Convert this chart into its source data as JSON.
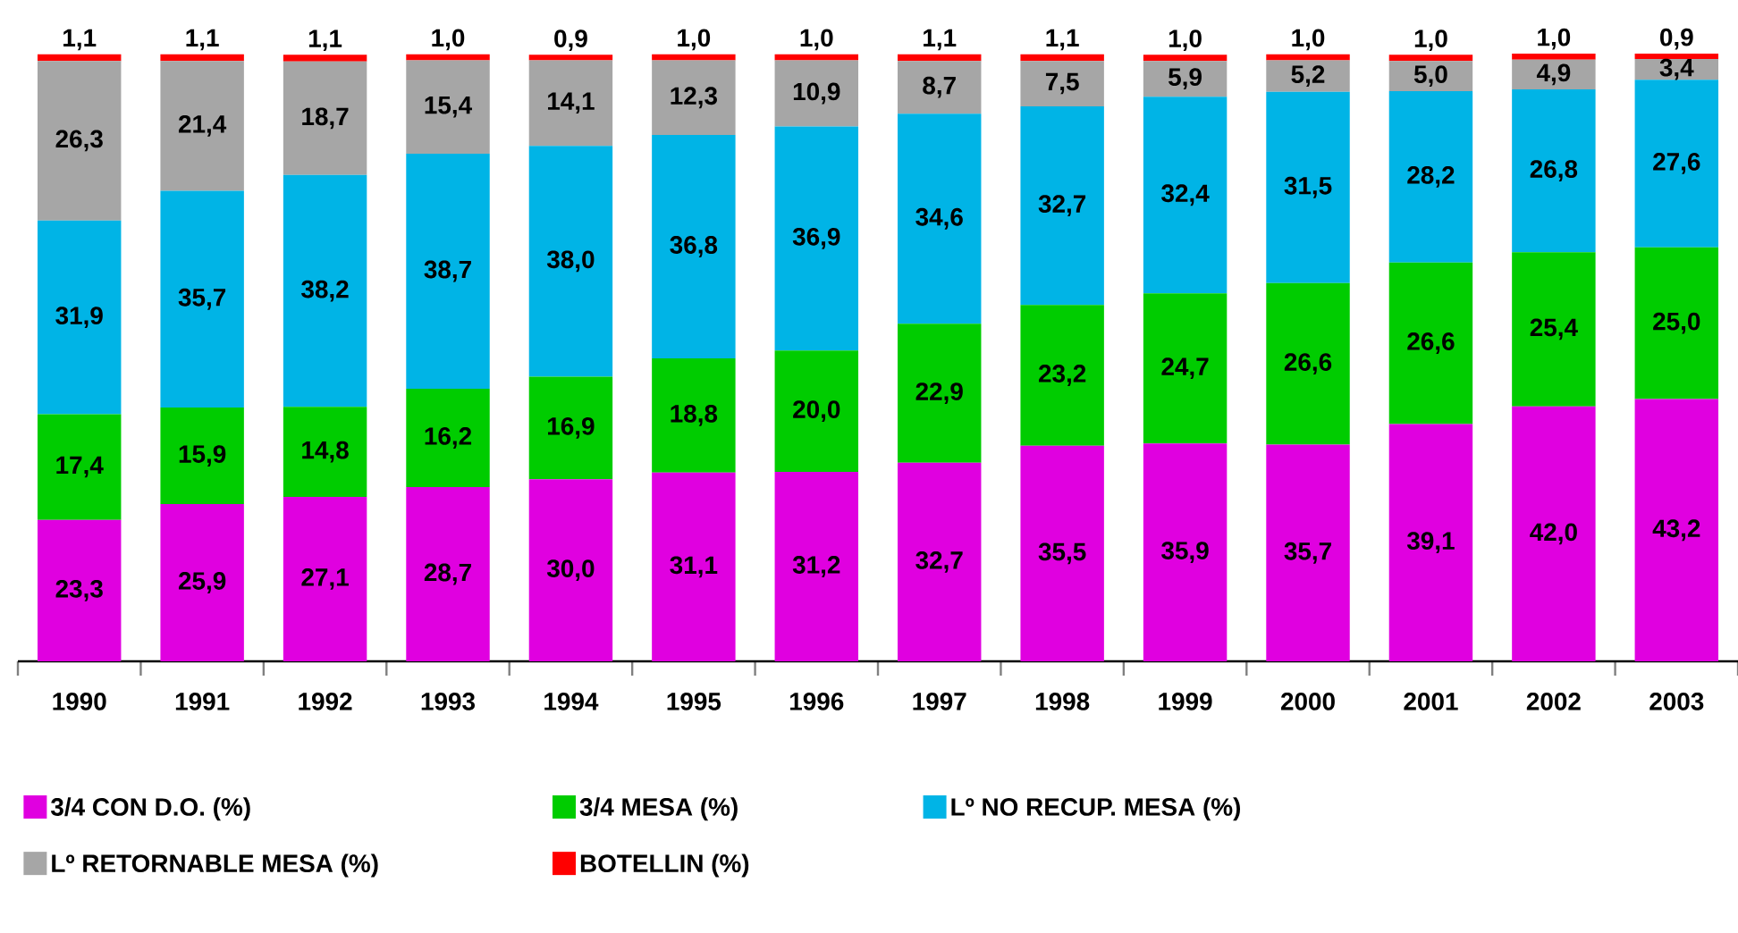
{
  "chart_data": {
    "type": "bar",
    "stacked": true,
    "legend": "bottom",
    "categories": [
      "1990",
      "1991",
      "1992",
      "1993",
      "1994",
      "1995",
      "1996",
      "1997",
      "1998",
      "1999",
      "2000",
      "2001",
      "2002",
      "2003"
    ],
    "series": [
      {
        "name": "3/4 CON D.O.  (%)",
        "color": "#e000e0",
        "values": [
          23.3,
          25.9,
          27.1,
          28.7,
          30.0,
          31.1,
          31.2,
          32.7,
          35.5,
          35.9,
          35.7,
          39.1,
          42.0,
          43.2
        ],
        "value_labels": [
          "23,3",
          "25,9",
          "27,1",
          "28,7",
          "30,0",
          "31,1",
          "31,2",
          "32,7",
          "35,5",
          "35,9",
          "35,7",
          "39,1",
          "42,0",
          "43,2"
        ]
      },
      {
        "name": "3/4 MESA (%)",
        "color": "#00cc00",
        "values": [
          17.4,
          15.9,
          14.8,
          16.2,
          16.9,
          18.8,
          20.0,
          22.9,
          23.2,
          24.7,
          26.6,
          26.6,
          25.4,
          25.0
        ],
        "value_labels": [
          "17,4",
          "15,9",
          "14,8",
          "16,2",
          "16,9",
          "18,8",
          "20,0",
          "22,9",
          "23,2",
          "24,7",
          "26,6",
          "26,6",
          "25,4",
          "25,0"
        ]
      },
      {
        "name": "Lº NO RECUP. MESA (%)",
        "color": "#00b4e6",
        "values": [
          31.9,
          35.7,
          38.2,
          38.7,
          38.0,
          36.8,
          36.9,
          34.6,
          32.7,
          32.4,
          31.5,
          28.2,
          26.8,
          27.6
        ],
        "value_labels": [
          "31,9",
          "35,7",
          "38,2",
          "38,7",
          "38,0",
          "36,8",
          "36,9",
          "34,6",
          "32,7",
          "32,4",
          "31,5",
          "28,2",
          "26,8",
          "27,6"
        ]
      },
      {
        "name": "Lº RETORNABLE MESA (%)",
        "color": "#a6a6a6",
        "values": [
          26.3,
          21.4,
          18.7,
          15.4,
          14.1,
          12.3,
          10.9,
          8.7,
          7.5,
          5.9,
          5.2,
          5.0,
          4.9,
          3.4
        ],
        "value_labels": [
          "26,3",
          "21,4",
          "18,7",
          "15,4",
          "14,1",
          "12,3",
          "10,9",
          "8,7",
          "7,5",
          "5,9",
          "5,2",
          "5,0",
          "4,9",
          "3,4"
        ]
      },
      {
        "name": "BOTELLIN (%)",
        "color": "#ff0000",
        "values": [
          1.1,
          1.1,
          1.1,
          1.0,
          0.9,
          1.0,
          1.0,
          1.1,
          1.1,
          1.0,
          1.0,
          1.0,
          1.0,
          0.9
        ],
        "value_labels": [
          "1,1",
          "1,1",
          "1,1",
          "1,0",
          "0,9",
          "1,0",
          "1,0",
          "1,1",
          "1,1",
          "1,0",
          "1,0",
          "1,0",
          "1,0",
          "0,9"
        ]
      }
    ]
  }
}
